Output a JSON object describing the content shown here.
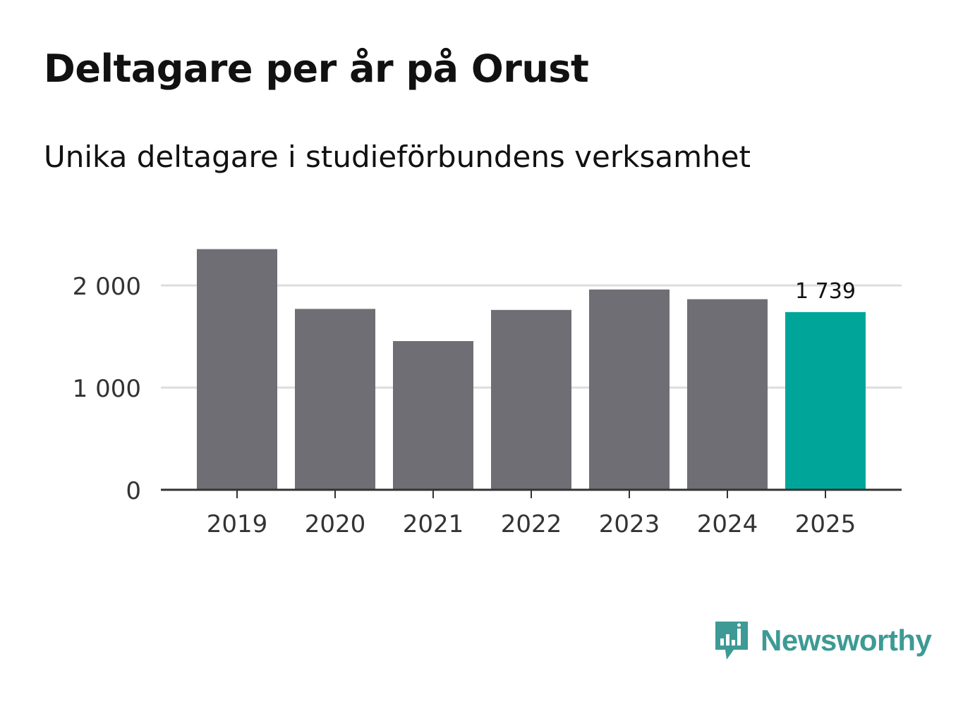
{
  "chart_data": {
    "type": "bar",
    "title": "Deltagare per år på Orust",
    "subtitle": "Unika deltagare i studieförbundens verksamhet",
    "categories": [
      "2019",
      "2020",
      "2021",
      "2022",
      "2023",
      "2024",
      "2025"
    ],
    "values": [
      2355,
      1770,
      1455,
      1760,
      1960,
      1865,
      1739
    ],
    "ylim": [
      0,
      2500
    ],
    "yticks": [
      0,
      1000,
      2000
    ],
    "ytick_labels": [
      "0",
      "1 000",
      "2 000"
    ],
    "highlight_index": 6,
    "highlight_label": "1 739",
    "colors": {
      "bar": "#6f6e75",
      "highlight": "#00a59a",
      "grid": "#dddddd",
      "axis": "#333333",
      "text": "#333333"
    },
    "xlabel": "",
    "ylabel": ""
  },
  "brand": {
    "name": "Newsworthy",
    "icon": "newsworthy-chart-bubble-icon",
    "color": "#3d9a94"
  }
}
